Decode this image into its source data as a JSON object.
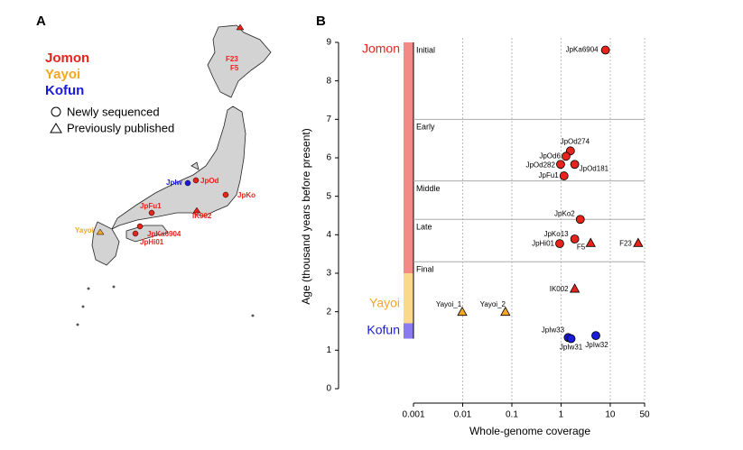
{
  "panel_a": {
    "label": "A",
    "legend_shapes": [
      "Newly sequenced",
      "Previously published"
    ],
    "sites": [
      "F23",
      "F5",
      "JpIw",
      "JpOd",
      "JpKo",
      "JpFu1",
      "IK002",
      "Yayoi",
      "JpKa6904",
      "JpHi01"
    ]
  },
  "chart_data": {
    "type": "scatter",
    "panel_label": "B",
    "xlabel": "Whole-genome coverage",
    "ylabel": "Age (thousand years before present)",
    "log_x": true,
    "xlim": [
      0.001,
      50
    ],
    "xticks": [
      0.001,
      0.01,
      0.1,
      1,
      10,
      50
    ],
    "ylim": [
      0,
      9
    ],
    "yticks": [
      0,
      1,
      2,
      3,
      4,
      5,
      6,
      7,
      8,
      9
    ],
    "grid_x": true,
    "subperiods": [
      {
        "name": "Initial",
        "upper": 9
      },
      {
        "name": "Early",
        "upper": 7
      },
      {
        "name": "Middle",
        "upper": 5.4
      },
      {
        "name": "Late",
        "upper": 4.4
      },
      {
        "name": "Final",
        "upper": 3.3
      }
    ],
    "series": [
      {
        "name": "Jomon",
        "color": "#e8231b",
        "bar_color": "#f48a86",
        "span": [
          3,
          9
        ],
        "point_labels": [
          "JpKa6904",
          "JpOd274",
          "JpOd6",
          "JpOd282",
          "JpOd181",
          "JpFu1",
          "JpKo2",
          "JpKo13",
          "JpHi01",
          "F5",
          "F23",
          "IK002"
        ],
        "x": [
          8,
          1.55,
          1.26,
          0.98,
          1.9,
          1.15,
          2.46,
          1.9,
          0.94,
          4.0,
          37,
          1.9
        ],
        "values": [
          8.8,
          6.18,
          6.04,
          5.83,
          5.83,
          5.53,
          4.4,
          3.89,
          3.77,
          3.79,
          3.79,
          2.6
        ],
        "markers": [
          "circle",
          "circle",
          "circle",
          "circle",
          "circle",
          "circle",
          "circle",
          "circle",
          "circle",
          "triangle",
          "triangle",
          "triangle"
        ]
      },
      {
        "name": "Yayoi",
        "color": "#f5a623",
        "bar_color": "#fbd98c",
        "span": [
          1.7,
          3
        ],
        "point_labels": [
          "Yayoi_1",
          "Yayoi_2"
        ],
        "x": [
          0.0098,
          0.074
        ],
        "values": [
          2.0,
          2.0
        ],
        "markers": [
          "triangle",
          "triangle"
        ]
      },
      {
        "name": "Kofun",
        "color": "#1a1adb",
        "bar_color": "#8a7bf0",
        "span": [
          1.3,
          1.7
        ],
        "point_labels": [
          "JpIw33",
          "JpIw31",
          "JpIw32"
        ],
        "x": [
          1.4,
          1.6,
          5.1
        ],
        "values": [
          1.33,
          1.3,
          1.38
        ],
        "markers": [
          "circle",
          "circle",
          "circle"
        ]
      }
    ]
  }
}
